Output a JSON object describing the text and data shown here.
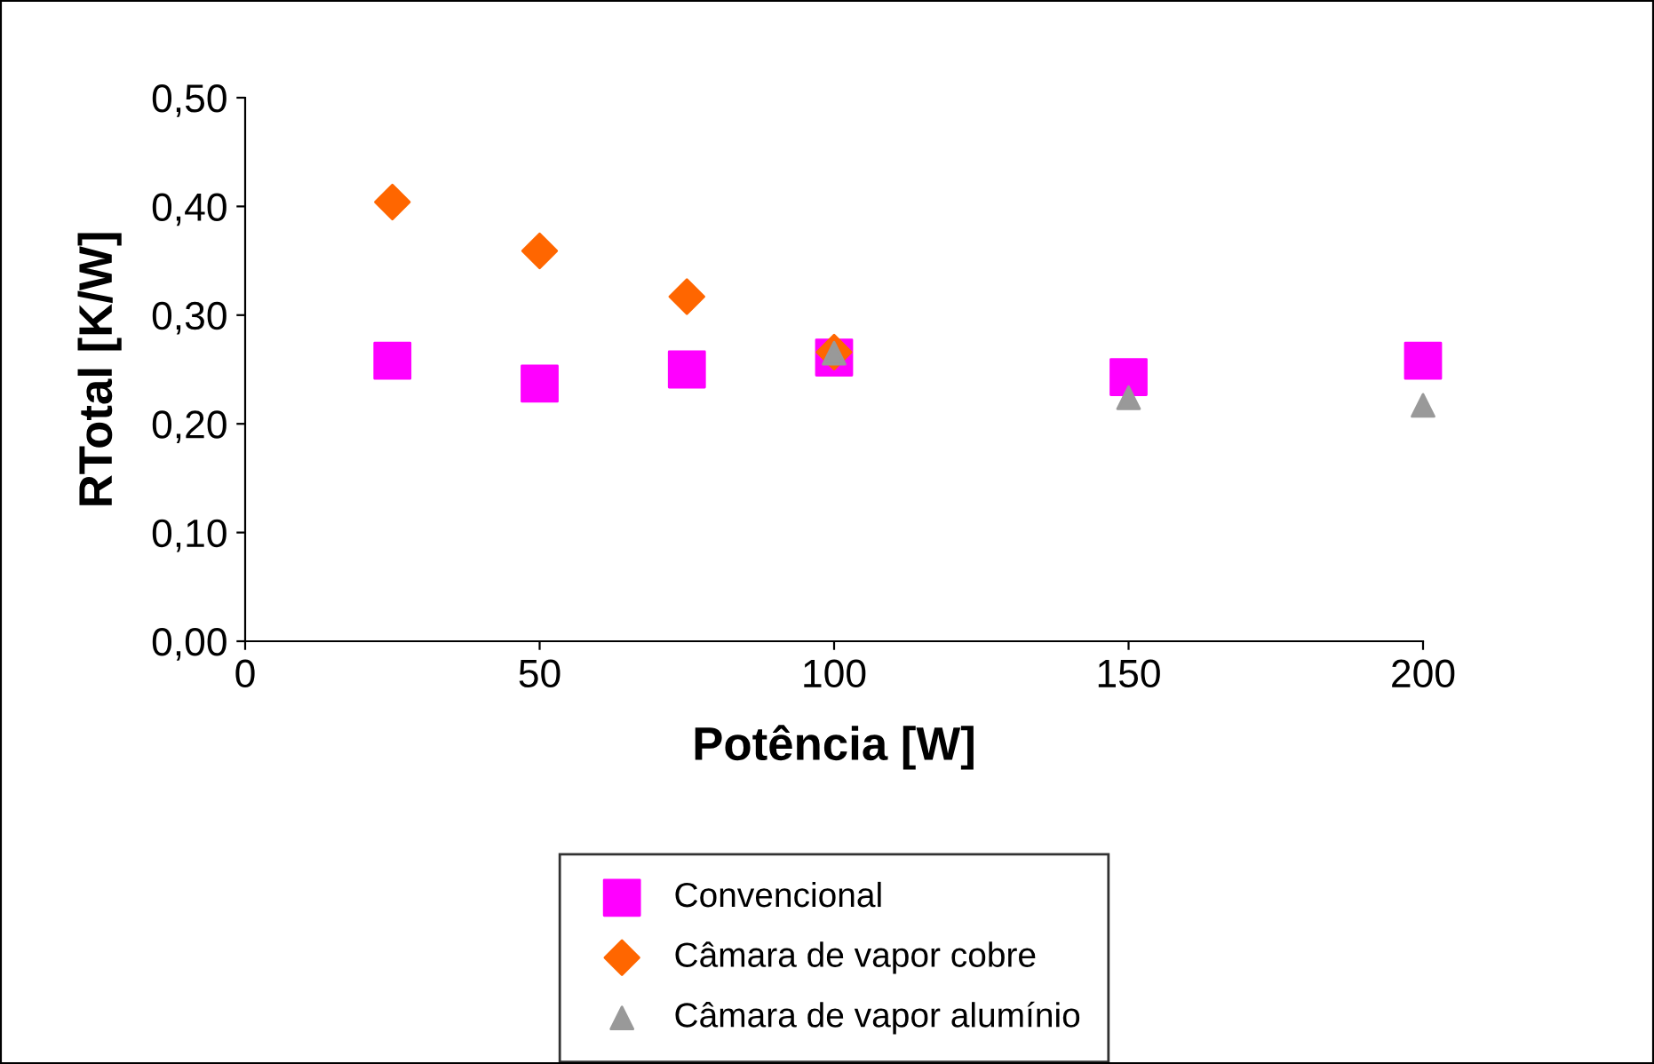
{
  "chart_data": {
    "type": "scatter",
    "xlabel": "Potência [W]",
    "ylabel": "RTotal [K/W]",
    "xlim": [
      0,
      200
    ],
    "xticks": [
      0,
      50,
      100,
      150,
      200
    ],
    "ylim": [
      0,
      0.5
    ],
    "yticks": [
      {
        "value": 0,
        "label": "0,00"
      },
      {
        "value": 0.1,
        "label": "0,10"
      },
      {
        "value": 0.2,
        "label": "0,20"
      },
      {
        "value": 0.3,
        "label": "0,30"
      },
      {
        "value": 0.4,
        "label": "0,40"
      },
      {
        "value": 0.5,
        "label": "0,50"
      }
    ],
    "grid": false,
    "legend": "bottom",
    "series": [
      {
        "name": "Convencional",
        "color": "#ff00ff",
        "marker": "square",
        "x": [
          25,
          50,
          75,
          100,
          150,
          200
        ],
        "values": [
          0.258,
          0.237,
          0.25,
          0.261,
          0.243,
          0.258
        ]
      },
      {
        "name": "Câmara de vapor cobre",
        "color": "#ff6600",
        "marker": "diamond",
        "x": [
          25,
          50,
          75,
          100
        ],
        "values": [
          0.404,
          0.359,
          0.317,
          0.266
        ]
      },
      {
        "name": "Câmara de vapor alumínio",
        "color": "#999999",
        "marker": "triangle",
        "x": [
          100,
          150,
          200
        ],
        "values": [
          0.265,
          0.224,
          0.217
        ]
      }
    ]
  }
}
